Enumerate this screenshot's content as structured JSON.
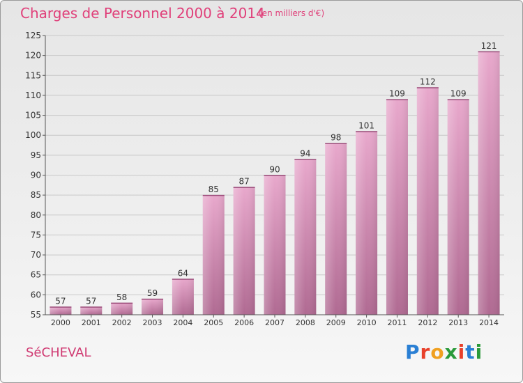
{
  "header": {
    "title": "Charges de Personnel 2000 à 2014",
    "unit": "(en milliers d'€)"
  },
  "footer": {
    "place": "SéCHEVAL",
    "logo_text": "Proxiti",
    "logo_colors": [
      "#2a7fd4",
      "#e8402a",
      "#f0a020",
      "#2a9a3a",
      "#e8402a",
      "#2a7fd4",
      "#2a9a3a"
    ]
  },
  "chart_data": {
    "type": "bar",
    "title": "Charges de Personnel 2000 à 2014",
    "subtitle": "(en milliers d'€)",
    "categories": [
      "2000",
      "2001",
      "2002",
      "2003",
      "2004",
      "2005",
      "2006",
      "2007",
      "2008",
      "2009",
      "2010",
      "2011",
      "2012",
      "2013",
      "2014"
    ],
    "values": [
      57,
      57,
      58,
      59,
      64,
      85,
      87,
      90,
      94,
      98,
      101,
      109,
      112,
      109,
      121
    ],
    "ylim": [
      55,
      125
    ],
    "yticks": [
      55,
      60,
      65,
      70,
      75,
      80,
      85,
      90,
      95,
      100,
      105,
      110,
      115,
      120,
      125
    ],
    "grid": true,
    "bar_color": "#cf7fac"
  }
}
